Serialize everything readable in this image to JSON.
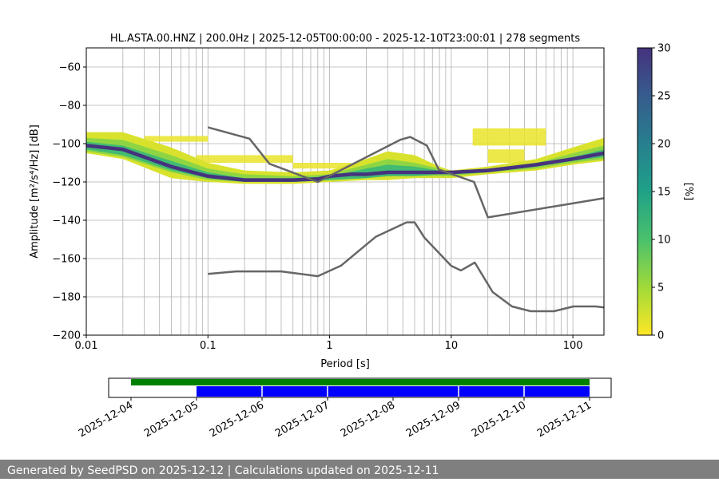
{
  "chart_data": {
    "type": "heatmap",
    "title": "HL.ASTA.00.HNZ | 200.0Hz | 2025-12-05T00:00:00 - 2025-12-10T23:00:01 | 278 segments",
    "xlabel": "Period [s]",
    "ylabel": "Amplitude [m²/s⁴/Hz] [dB]",
    "x_scale": "log",
    "xlim": [
      0.01,
      180
    ],
    "ylim": [
      -200,
      -50
    ],
    "x_ticks": [
      0.01,
      0.1,
      1,
      10,
      100
    ],
    "x_tick_labels": [
      "0.01",
      "0.1",
      "1",
      "10",
      "100"
    ],
    "y_ticks": [
      -200,
      -180,
      -160,
      -140,
      -120,
      -100,
      -80,
      -60
    ],
    "y_tick_labels": [
      "−200",
      "−180",
      "−160",
      "−140",
      "−120",
      "−100",
      "−80",
      "−60"
    ],
    "grid": true,
    "colorbar": {
      "label": "[%]",
      "range": [
        0,
        30
      ],
      "ticks": [
        0,
        5,
        10,
        15,
        20,
        25,
        30
      ],
      "tick_labels": [
        "0",
        "5",
        "10",
        "15",
        "20",
        "25",
        "30"
      ],
      "colormap": "viridis_r"
    },
    "mode_curve": {
      "x": [
        0.01,
        0.02,
        0.05,
        0.1,
        0.2,
        0.5,
        0.8,
        1,
        1.5,
        2,
        3,
        5,
        8,
        10,
        20,
        50,
        100,
        180
      ],
      "y": [
        -101,
        -103,
        -112,
        -117,
        -119,
        -119,
        -118.5,
        -117,
        -116,
        -116,
        -115,
        -115,
        -115,
        -115,
        -114,
        -111,
        -108,
        -105
      ]
    },
    "density_bands": [
      {
        "x": [
          0.01,
          0.02,
          0.05,
          0.1,
          0.2,
          0.5,
          1,
          2,
          3,
          5,
          8,
          10,
          20,
          50,
          100,
          180
        ],
        "y_low": [
          -105,
          -108,
          -118,
          -120,
          -121,
          -121,
          -120,
          -119,
          -119,
          -118,
          -118,
          -118,
          -116,
          -114,
          -111,
          -109
        ],
        "y_high": [
          -94,
          -94,
          -102,
          -110,
          -114,
          -115,
          -114,
          -108,
          -104,
          -106,
          -112,
          -114,
          -112,
          -108,
          -102,
          -97
        ],
        "level": 2
      },
      {
        "x": [
          0.01,
          0.02,
          0.05,
          0.1,
          0.2,
          0.5,
          1,
          2,
          3,
          5,
          8,
          10,
          20,
          50,
          100,
          180
        ],
        "y_low": [
          -104,
          -107,
          -115,
          -119,
          -120,
          -120,
          -119,
          -118,
          -117,
          -117,
          -117,
          -117,
          -115,
          -113,
          -110,
          -108
        ],
        "y_high": [
          -97,
          -98,
          -106,
          -113,
          -116,
          -117,
          -116,
          -111,
          -108,
          -110,
          -113,
          -115,
          -113,
          -110,
          -105,
          -101
        ],
        "level": 6
      },
      {
        "x": [
          0.01,
          0.02,
          0.05,
          0.1,
          0.2,
          0.5,
          1,
          2,
          3,
          5,
          8,
          10,
          20,
          50,
          100,
          180
        ],
        "y_low": [
          -103,
          -106,
          -114,
          -118,
          -120,
          -120,
          -119,
          -118,
          -117,
          -117,
          -116,
          -116,
          -115,
          -112,
          -109,
          -107
        ],
        "y_high": [
          -99,
          -101,
          -109,
          -115,
          -118,
          -118,
          -117,
          -113,
          -111,
          -112,
          -114,
          -115,
          -114,
          -111,
          -107,
          -103
        ],
        "level": 11
      }
    ],
    "sparse_patches": [
      {
        "x": [
          0.03,
          0.1
        ],
        "y": [
          -99,
          -96
        ],
        "level": 1
      },
      {
        "x": [
          0.08,
          0.5
        ],
        "y": [
          -110,
          -106
        ],
        "level": 1
      },
      {
        "x": [
          0.5,
          1.5
        ],
        "y": [
          -113,
          -110
        ],
        "level": 1
      },
      {
        "x": [
          15,
          60
        ],
        "y": [
          -101,
          -92
        ],
        "level": 1
      },
      {
        "x": [
          20,
          40
        ],
        "y": [
          -110,
          -103
        ],
        "level": 1
      }
    ],
    "nhnm": {
      "x": [
        0.1,
        0.22,
        0.32,
        0.8,
        3.8,
        4.6,
        6.3,
        7.9,
        15.4,
        20,
        180
      ],
      "y": [
        -91.5,
        -97.4,
        -110.5,
        -120,
        -98,
        -96.5,
        -101,
        -113.5,
        -120,
        -138.5,
        -128.5
      ]
    },
    "nlnm": {
      "x": [
        0.1,
        0.17,
        0.4,
        0.8,
        1.24,
        2.4,
        4.3,
        5,
        6,
        10,
        12,
        15.6,
        21.9,
        31.6,
        45,
        70,
        101,
        154,
        180
      ],
      "y": [
        -168,
        -166.7,
        -166.7,
        -169.2,
        -163.7,
        -148.6,
        -141.1,
        -141.1,
        -149,
        -163.8,
        -166.2,
        -162.1,
        -177.5,
        -185,
        -187.5,
        -187.5,
        -185,
        -185,
        -185.5
      ]
    },
    "line_color": "#666666",
    "availability": {
      "tick_labels": [
        "2025-12-04",
        "2025-12-05",
        "2025-12-06",
        "2025-12-07",
        "2025-12-08",
        "2025-12-09",
        "2025-12-10",
        "2025-12-11"
      ],
      "top_bar": {
        "start": 0.0,
        "end": 7.0,
        "color": "#008000"
      },
      "bottom_bar": {
        "start": 1.0,
        "end": 7.0,
        "color": "#0000ff"
      },
      "gaps": [
        2.0,
        3.0,
        5.0,
        6.0
      ]
    }
  },
  "footer": {
    "text": "Generated by SeedPSD on 2025-12-12 | Calculations updated on 2025-12-11"
  }
}
